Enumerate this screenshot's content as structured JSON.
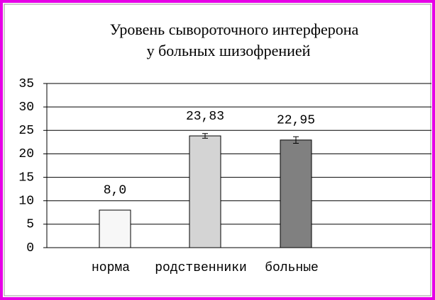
{
  "chart_data": {
    "type": "bar",
    "title": [
      "Уровень сывороточного интерферона",
      "у больных шизофренией"
    ],
    "categories": [
      "норма",
      "родственники",
      "больные"
    ],
    "values": [
      8.0,
      23.83,
      22.95
    ],
    "value_labels": [
      "8,0",
      "23,83",
      "22,95"
    ],
    "errors": [
      null,
      0.5,
      0.7
    ],
    "colors": [
      "#f7f7f7",
      "#d4d4d4",
      "#808080"
    ],
    "ylim": [
      0,
      35
    ],
    "yticks": [
      0,
      5,
      10,
      15,
      20,
      25,
      30,
      35
    ],
    "grid": true
  }
}
